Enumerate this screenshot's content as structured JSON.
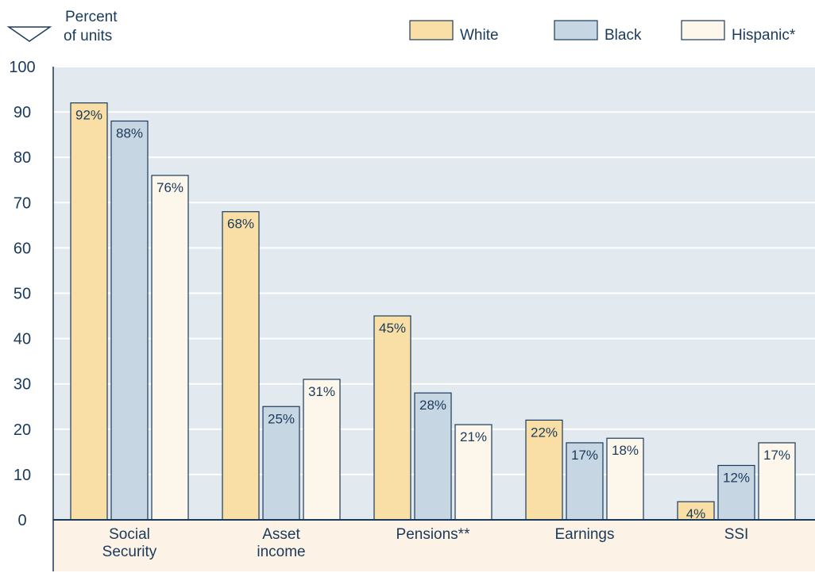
{
  "chart_data": {
    "type": "bar",
    "ylabel": [
      "Percent",
      "of units"
    ],
    "ylim": [
      0,
      100
    ],
    "yticks": [
      0,
      10,
      20,
      30,
      40,
      50,
      60,
      70,
      80,
      90,
      100
    ],
    "grid": true,
    "legend_position": "top-right",
    "categories": [
      [
        "Social",
        "Security"
      ],
      [
        "Asset",
        "income"
      ],
      [
        "Pensions**"
      ],
      [
        "Earnings"
      ],
      [
        "SSI"
      ]
    ],
    "series": [
      {
        "name": "White",
        "values": [
          92,
          68,
          45,
          22,
          4
        ],
        "labels": [
          "92%",
          "68%",
          "45%",
          "22%",
          "4%"
        ],
        "color": "#f9dfa5"
      },
      {
        "name": "Black",
        "values": [
          88,
          25,
          28,
          17,
          12
        ],
        "labels": [
          "88%",
          "25%",
          "28%",
          "17%",
          "12%"
        ],
        "color": "#c6d6e2"
      },
      {
        "name": "Hispanic*",
        "values": [
          76,
          31,
          21,
          18,
          17
        ],
        "labels": [
          "76%",
          "31%",
          "21%",
          "18%",
          "17%"
        ],
        "color": "#fdf6ea"
      }
    ],
    "colors": {
      "plot_background": "#e2e9ef",
      "category_band": "#fcf3e6",
      "axis": "#1a3a5c",
      "text": "#1a3a5c",
      "grid": "#ffffff"
    }
  }
}
